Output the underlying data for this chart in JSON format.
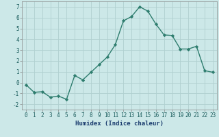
{
  "x": [
    0,
    1,
    2,
    3,
    4,
    5,
    6,
    7,
    8,
    9,
    10,
    11,
    12,
    13,
    14,
    15,
    16,
    17,
    18,
    19,
    20,
    21,
    22,
    23
  ],
  "y": [
    -0.2,
    -0.9,
    -0.85,
    -1.35,
    -1.25,
    -1.55,
    0.65,
    0.25,
    0.95,
    1.65,
    2.35,
    3.5,
    5.7,
    6.1,
    7.0,
    6.6,
    5.4,
    4.4,
    4.35,
    3.1,
    3.1,
    3.35,
    1.1,
    0.95
  ],
  "line_color": "#2e7d6e",
  "marker": "D",
  "marker_size": 2.2,
  "bg_color": "#cce8e8",
  "grid_color": "#b0d0d0",
  "xlabel": "Humidex (Indice chaleur)",
  "xlim": [
    -0.5,
    23.5
  ],
  "ylim": [
    -2.5,
    7.5
  ],
  "yticks": [
    -2,
    -1,
    0,
    1,
    2,
    3,
    4,
    5,
    6,
    7
  ],
  "xticks": [
    0,
    1,
    2,
    3,
    4,
    5,
    6,
    7,
    8,
    9,
    10,
    11,
    12,
    13,
    14,
    15,
    16,
    17,
    18,
    19,
    20,
    21,
    22,
    23
  ],
  "tick_fontsize": 5.5,
  "xlabel_fontsize": 6.5,
  "line_width": 1.0
}
